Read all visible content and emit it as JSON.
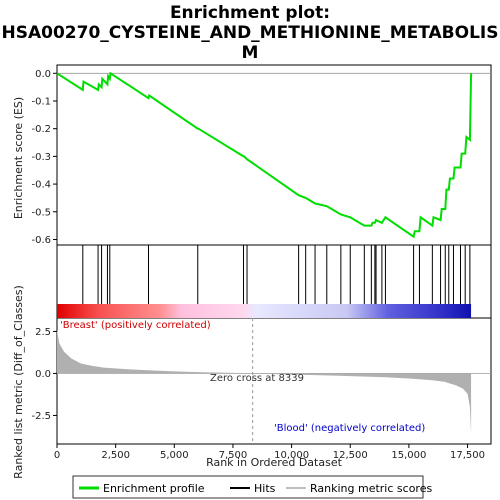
{
  "chart_data": {
    "type": "line",
    "title_line1": "Enrichment plot:",
    "title_line2": "HSA00270_CYSTEINE_AND_METHIONINE_METABOLIS",
    "title_line3": "M",
    "xlabel": "Rank in Ordered Dataset",
    "ylabel_top": "Enrichment score (ES)",
    "ylabel_bottom": "Ranked list metric (Diff_of_Classes)",
    "xlim": [
      0,
      18500
    ],
    "top_ylim": [
      -0.62,
      0.03
    ],
    "bottom_ylim": [
      -4.2,
      3.3
    ],
    "x_ticks": [
      0,
      2500,
      5000,
      7500,
      10000,
      12500,
      15000,
      17500
    ],
    "x_tick_labels": [
      "0",
      "2,500",
      "5,000",
      "7,500",
      "10,000",
      "12,500",
      "15,000",
      "17,500"
    ],
    "top_y_ticks": [
      0.0,
      -0.1,
      -0.2,
      -0.3,
      -0.4,
      -0.5,
      -0.6
    ],
    "top_y_tick_labels": [
      "0.0",
      "-0.1",
      "-0.2",
      "-0.3",
      "-0.4",
      "-0.5",
      "-0.6"
    ],
    "bottom_y_ticks": [
      2.5,
      0.0,
      -2.5
    ],
    "bottom_y_tick_labels": [
      "2.5",
      "0.0",
      "-2.5"
    ],
    "enrichment_profile": {
      "x": [
        0,
        1100,
        1130,
        1750,
        1780,
        1900,
        1930,
        2150,
        2180,
        2250,
        2280,
        3900,
        3930,
        6000,
        6030,
        7950,
        7980,
        8100,
        10300,
        10600,
        11000,
        11500,
        12100,
        12500,
        13100,
        13400,
        13450,
        13550,
        13600,
        13850,
        14000,
        15200,
        15250,
        15450,
        15500,
        16000,
        16050,
        16350,
        16400,
        16550,
        16600,
        16700,
        16750,
        16900,
        16950,
        17200,
        17250,
        17400,
        17450,
        17600,
        17650
      ],
      "y": [
        0.0,
        -0.06,
        -0.03,
        -0.06,
        -0.04,
        -0.05,
        -0.02,
        -0.04,
        -0.01,
        -0.02,
        0.0,
        -0.09,
        -0.08,
        -0.2,
        -0.2,
        -0.3,
        -0.3,
        -0.31,
        -0.44,
        -0.45,
        -0.47,
        -0.48,
        -0.51,
        -0.52,
        -0.55,
        -0.55,
        -0.54,
        -0.54,
        -0.53,
        -0.54,
        -0.52,
        -0.59,
        -0.57,
        -0.57,
        -0.52,
        -0.55,
        -0.52,
        -0.53,
        -0.49,
        -0.49,
        -0.42,
        -0.42,
        -0.38,
        -0.38,
        -0.34,
        -0.34,
        -0.29,
        -0.29,
        -0.23,
        -0.24,
        0.0
      ]
    },
    "hits": [
      1100,
      1750,
      1900,
      2150,
      2250,
      3900,
      6000,
      7950,
      8100,
      10300,
      10600,
      11000,
      11500,
      12100,
      12500,
      13100,
      13400,
      13550,
      13600,
      13850,
      14000,
      15200,
      15450,
      16000,
      16350,
      16550,
      16700,
      16900,
      17200,
      17400,
      17600
    ],
    "ranking_metric": {
      "x": [
        0,
        100,
        300,
        600,
        1000,
        1500,
        2000,
        3000,
        4000,
        5000,
        6000,
        7000,
        8000,
        8339,
        9000,
        10000,
        11000,
        12000,
        13000,
        14000,
        15000,
        16000,
        16500,
        17000,
        17300,
        17500,
        17600,
        17650
      ],
      "y": [
        2.6,
        1.8,
        1.3,
        0.9,
        0.6,
        0.45,
        0.35,
        0.25,
        0.18,
        0.12,
        0.08,
        0.05,
        0.02,
        0.0,
        -0.03,
        -0.07,
        -0.1,
        -0.14,
        -0.18,
        -0.23,
        -0.3,
        -0.4,
        -0.5,
        -0.7,
        -0.9,
        -1.2,
        -2.0,
        -3.6
      ]
    },
    "zero_cross_x": 8339,
    "annotations": {
      "zero_cross": "Zero cross at 8339",
      "positive": "'Breast' (positively correlated)",
      "negative": "'Blood' (negatively correlated)"
    },
    "legend": [
      "Enrichment profile",
      "Hits",
      "Ranking metric scores"
    ],
    "colors": {
      "profile": "#00dd00",
      "hits": "#000000",
      "metric_fill": "#b0b0b0",
      "positive_text": "#cc0000",
      "negative_text": "#0000cc",
      "zero_line": "#aaaaaa",
      "zero_cross_line": "#999999"
    }
  }
}
